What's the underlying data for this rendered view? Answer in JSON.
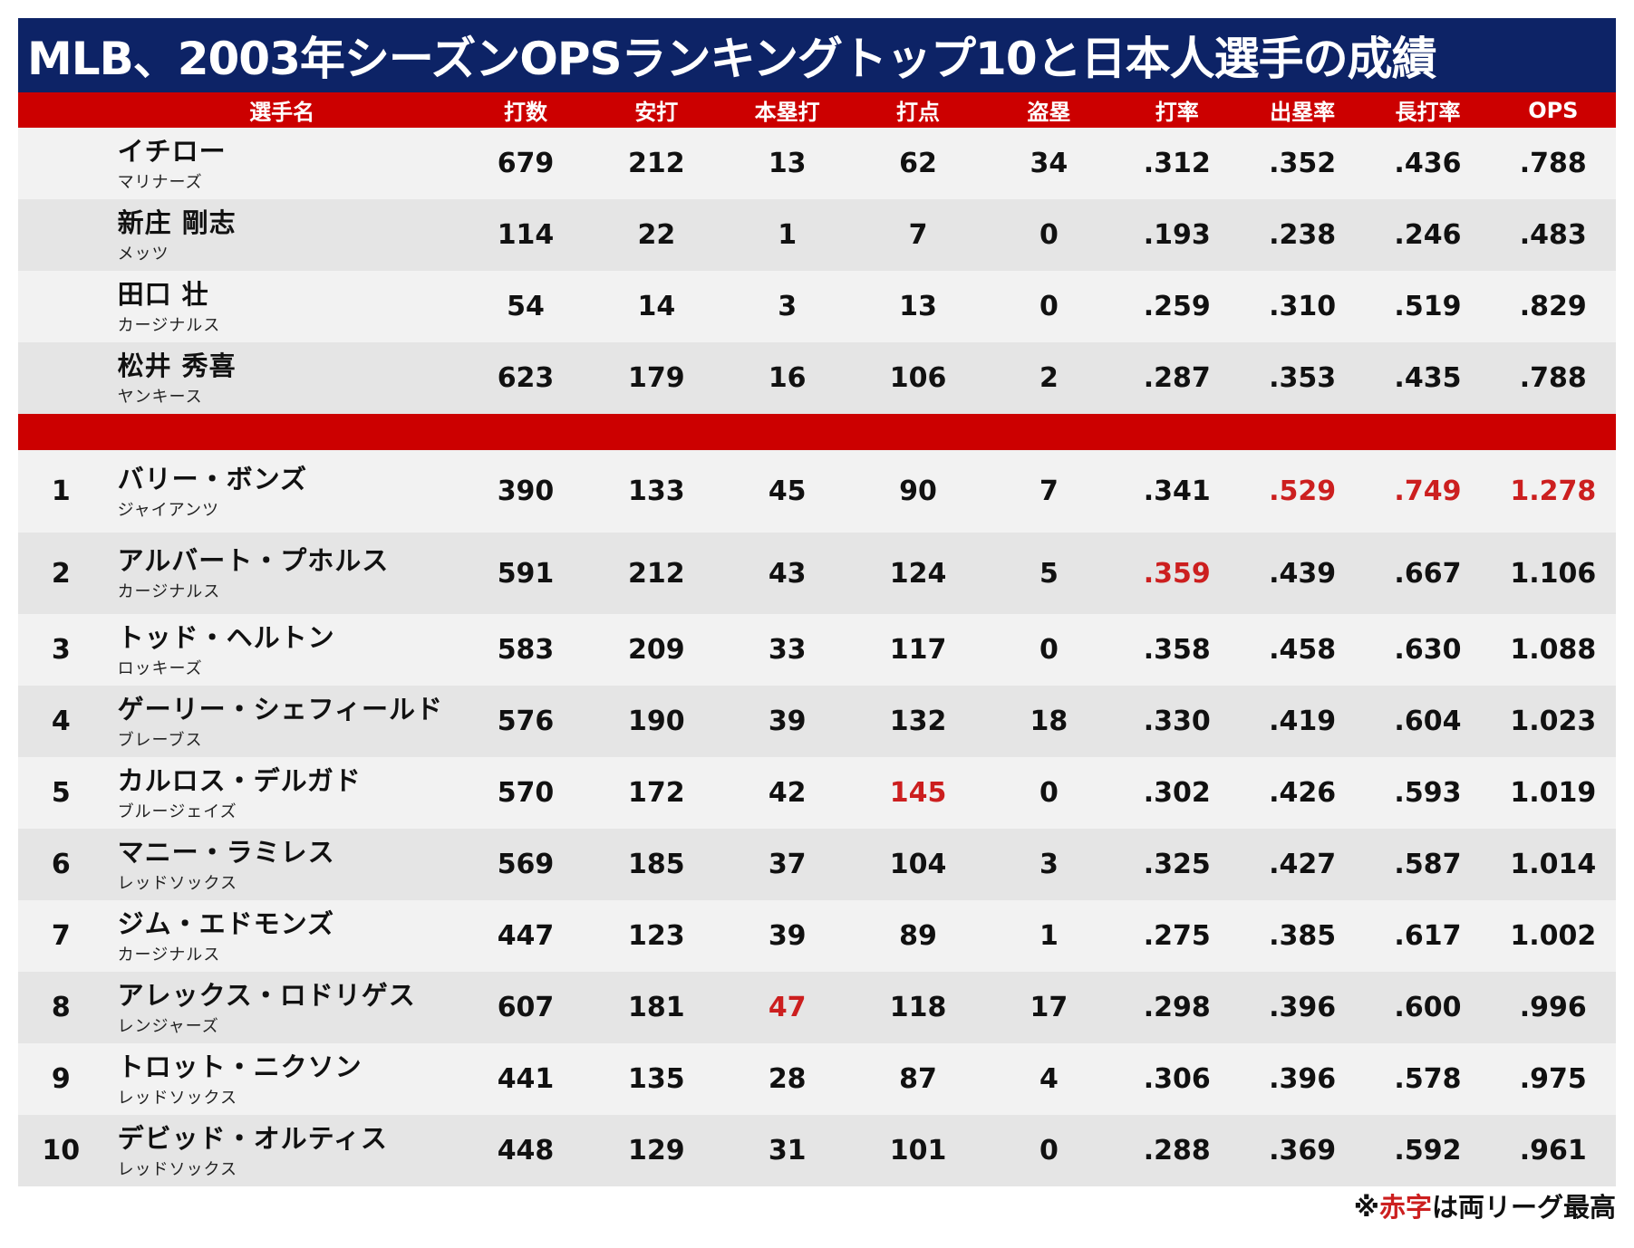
{
  "title": "MLB、2003年シーズンOPSランキングトップ10と日本人選手の成績",
  "colors": {
    "title_bg": "#0d2366",
    "header_bg": "#cc0000",
    "highlight": "#cc1f1f"
  },
  "chart_data": {
    "type": "table",
    "columns": [
      "",
      "選手名",
      "打数",
      "安打",
      "本塁打",
      "打点",
      "盗塁",
      "打率",
      "出塁率",
      "長打率",
      "OPS"
    ],
    "japanese_players": [
      {
        "rank": "",
        "name": "イチロー",
        "team": "マリナーズ",
        "ab": "679",
        "h": "212",
        "hr": "13",
        "rbi": "62",
        "sb": "34",
        "avg": ".312",
        "obp": ".352",
        "slg": ".436",
        "ops": ".788"
      },
      {
        "rank": "",
        "name": "新庄 剛志",
        "team": "メッツ",
        "ab": "114",
        "h": "22",
        "hr": "1",
        "rbi": "7",
        "sb": "0",
        "avg": ".193",
        "obp": ".238",
        "slg": ".246",
        "ops": ".483"
      },
      {
        "rank": "",
        "name": "田口 壮",
        "team": "カージナルス",
        "ab": "54",
        "h": "14",
        "hr": "3",
        "rbi": "13",
        "sb": "0",
        "avg": ".259",
        "obp": ".310",
        "slg": ".519",
        "ops": ".829"
      },
      {
        "rank": "",
        "name": "松井 秀喜",
        "team": "ヤンキース",
        "ab": "623",
        "h": "179",
        "hr": "16",
        "rbi": "106",
        "sb": "2",
        "avg": ".287",
        "obp": ".353",
        "slg": ".435",
        "ops": ".788"
      }
    ],
    "top10": [
      {
        "rank": "1",
        "name": "バリー・ボンズ",
        "team": "ジャイアンツ",
        "ab": "390",
        "h": "133",
        "hr": "45",
        "rbi": "90",
        "sb": "7",
        "avg": ".341",
        "obp": ".529",
        "slg": ".749",
        "ops": "1.278",
        "red": [
          "obp",
          "slg",
          "ops"
        ]
      },
      {
        "rank": "2",
        "name": "アルバート・プホルス",
        "team": "カージナルス",
        "ab": "591",
        "h": "212",
        "hr": "43",
        "rbi": "124",
        "sb": "5",
        "avg": ".359",
        "obp": ".439",
        "slg": ".667",
        "ops": "1.106",
        "red": [
          "avg"
        ]
      },
      {
        "rank": "3",
        "name": "トッド・ヘルトン",
        "team": "ロッキーズ",
        "ab": "583",
        "h": "209",
        "hr": "33",
        "rbi": "117",
        "sb": "0",
        "avg": ".358",
        "obp": ".458",
        "slg": ".630",
        "ops": "1.088",
        "red": []
      },
      {
        "rank": "4",
        "name": "ゲーリー・シェフィールド",
        "team": "ブレーブス",
        "ab": "576",
        "h": "190",
        "hr": "39",
        "rbi": "132",
        "sb": "18",
        "avg": ".330",
        "obp": ".419",
        "slg": ".604",
        "ops": "1.023",
        "red": []
      },
      {
        "rank": "5",
        "name": "カルロス・デルガド",
        "team": "ブルージェイズ",
        "ab": "570",
        "h": "172",
        "hr": "42",
        "rbi": "145",
        "sb": "0",
        "avg": ".302",
        "obp": ".426",
        "slg": ".593",
        "ops": "1.019",
        "red": [
          "rbi"
        ]
      },
      {
        "rank": "6",
        "name": "マニー・ラミレス",
        "team": "レッドソックス",
        "ab": "569",
        "h": "185",
        "hr": "37",
        "rbi": "104",
        "sb": "3",
        "avg": ".325",
        "obp": ".427",
        "slg": ".587",
        "ops": "1.014",
        "red": []
      },
      {
        "rank": "7",
        "name": "ジム・エドモンズ",
        "team": "カージナルス",
        "ab": "447",
        "h": "123",
        "hr": "39",
        "rbi": "89",
        "sb": "1",
        "avg": ".275",
        "obp": ".385",
        "slg": ".617",
        "ops": "1.002",
        "red": []
      },
      {
        "rank": "8",
        "name": "アレックス・ロドリゲス",
        "team": "レンジャーズ",
        "ab": "607",
        "h": "181",
        "hr": "47",
        "rbi": "118",
        "sb": "17",
        "avg": ".298",
        "obp": ".396",
        "slg": ".600",
        "ops": ".996",
        "red": [
          "hr"
        ]
      },
      {
        "rank": "9",
        "name": "トロット・ニクソン",
        "team": "レッドソックス",
        "ab": "441",
        "h": "135",
        "hr": "28",
        "rbi": "87",
        "sb": "4",
        "avg": ".306",
        "obp": ".396",
        "slg": ".578",
        "ops": ".975",
        "red": []
      },
      {
        "rank": "10",
        "name": "デビッド・オルティス",
        "team": "レッドソックス",
        "ab": "448",
        "h": "129",
        "hr": "31",
        "rbi": "101",
        "sb": "0",
        "avg": ".288",
        "obp": ".369",
        "slg": ".592",
        "ops": ".961",
        "red": []
      }
    ]
  },
  "footnote": {
    "prefix": "※",
    "red_text": "赤字",
    "suffix": "は両リーグ最高"
  }
}
